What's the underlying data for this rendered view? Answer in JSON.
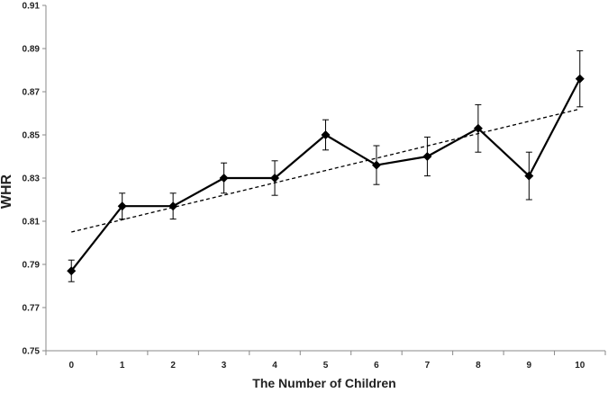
{
  "chart_data": {
    "type": "line",
    "title": "",
    "xlabel": "The Number of Children",
    "ylabel": "WHR",
    "x": [
      0,
      1,
      2,
      3,
      4,
      5,
      6,
      7,
      8,
      9,
      10
    ],
    "x_tick_labels": [
      "0",
      "1",
      "2",
      "3",
      "4",
      "5",
      "6",
      "7",
      "8",
      "9",
      "10"
    ],
    "y_tick_labels": [
      "0.75",
      "0.77",
      "0.79",
      "0.81",
      "0.83",
      "0.85",
      "0.87",
      "0.89",
      "0.91"
    ],
    "ylim": [
      0.75,
      0.91
    ],
    "ystep": 0.02,
    "grid": false,
    "legend": "none",
    "series": [
      {
        "marker": "diamond",
        "color": "#000000",
        "values": [
          0.787,
          0.817,
          0.817,
          0.83,
          0.83,
          0.85,
          0.836,
          0.84,
          0.853,
          0.831,
          0.876
        ],
        "error": [
          0.005,
          0.006,
          0.006,
          0.007,
          0.008,
          0.007,
          0.009,
          0.009,
          0.011,
          0.011,
          0.013
        ]
      }
    ],
    "trendline": {
      "style": "dashed",
      "type": "linear",
      "start": [
        0,
        0.805
      ],
      "end": [
        10,
        0.862
      ]
    }
  }
}
